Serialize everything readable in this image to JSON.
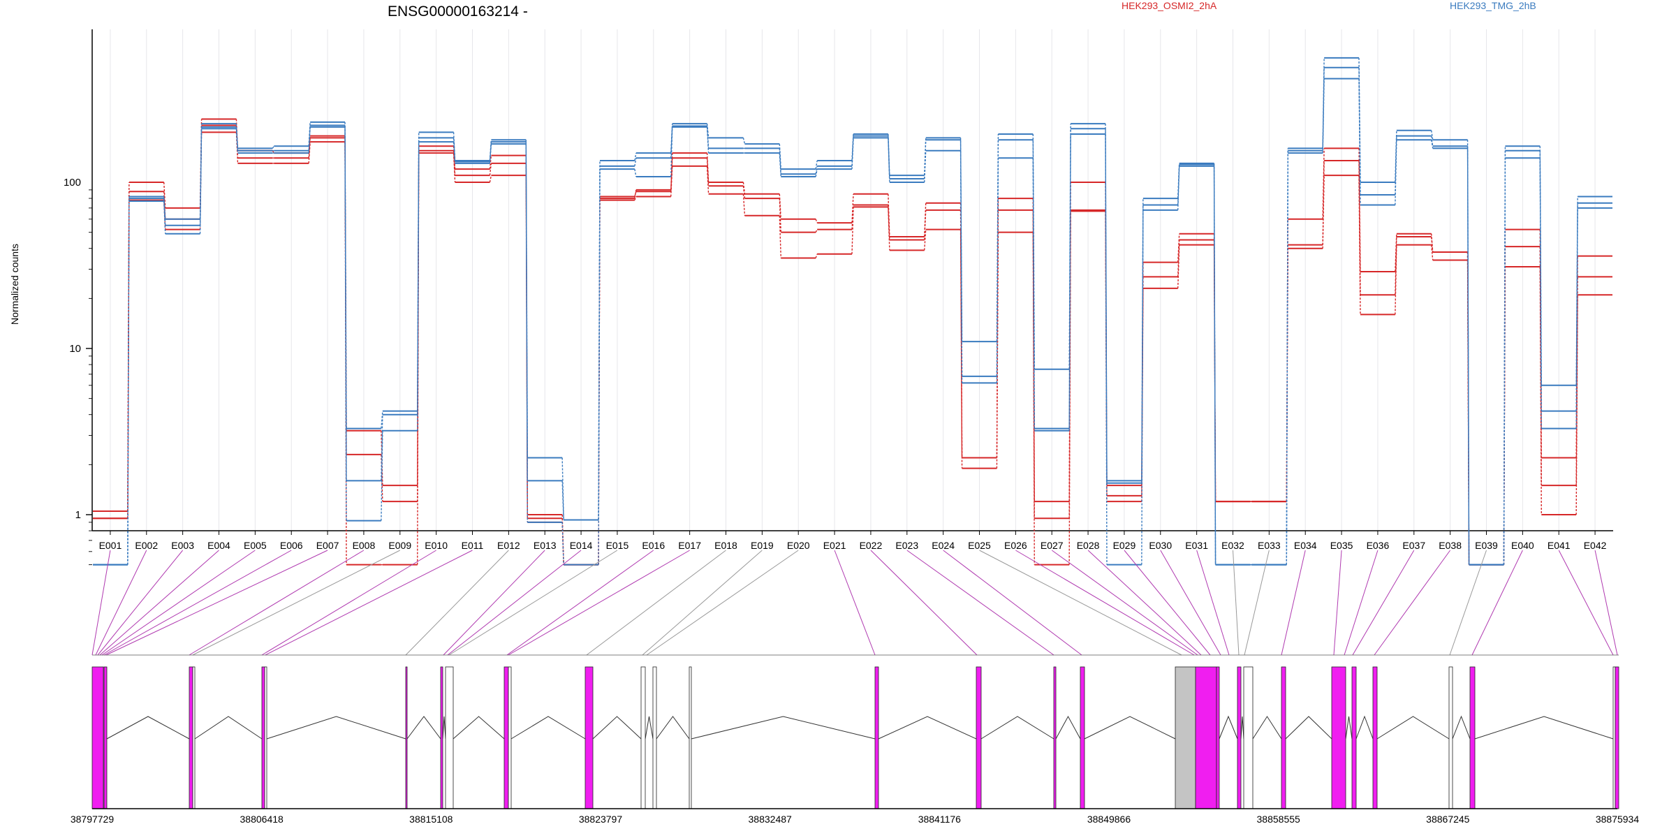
{
  "chart_data": {
    "type": "line",
    "title": "ENSG00000163214 -",
    "ylabel": "Normalized counts",
    "yscale": "log",
    "ylim": [
      0.48,
      800
    ],
    "y_ticks": [
      {
        "value": 1,
        "label": "1"
      },
      {
        "value": 10,
        "label": "10"
      },
      {
        "value": 100,
        "label": "100"
      }
    ],
    "legend": [
      {
        "label": "HEK293_OSMI2_2hA",
        "color": "#d62728"
      },
      {
        "label": "HEK293_TMG_2hB",
        "color": "#3a7bbf"
      }
    ],
    "legend_placement": "top",
    "categories": [
      "E001",
      "E002",
      "E003",
      "E004",
      "E005",
      "E006",
      "E007",
      "E008",
      "E009",
      "E010",
      "E011",
      "E012",
      "E013",
      "E014",
      "E015",
      "E016",
      "E017",
      "E018",
      "E019",
      "E020",
      "E021",
      "E022",
      "E023",
      "E024",
      "E025",
      "E026",
      "E027",
      "E028",
      "E029",
      "E030",
      "E031",
      "E032",
      "E033",
      "E034",
      "E035",
      "E036",
      "E037",
      "E038",
      "E039",
      "E040",
      "E041",
      "E042"
    ],
    "series": [
      {
        "group": "red",
        "color": "#d62728",
        "values": [
          1.05,
          100,
          70,
          240,
          155,
          150,
          190,
          3.2,
          1.5,
          165,
          120,
          145,
          1.0,
          0.5,
          80,
          90,
          150,
          100,
          85,
          60,
          57,
          85,
          47,
          75,
          2.2,
          80,
          1.2,
          100,
          1.5,
          33,
          49,
          1.2,
          1.2,
          60,
          160,
          29,
          49,
          38,
          0.5,
          52,
          2.2,
          36
        ]
      },
      {
        "group": "red",
        "color": "#d62728",
        "values": [
          0.95,
          88,
          60,
          220,
          140,
          140,
          185,
          2.3,
          1.2,
          155,
          110,
          130,
          0.95,
          0.5,
          82,
          88,
          140,
          95,
          80,
          50,
          52,
          73,
          45,
          68,
          2.2,
          68,
          0.95,
          68,
          1.3,
          27,
          45,
          1.2,
          1.2,
          42,
          135,
          21,
          47,
          38,
          0.5,
          41,
          1.5,
          27
        ]
      },
      {
        "group": "red",
        "color": "#d62728",
        "values": [
          0.95,
          78,
          52,
          200,
          130,
          130,
          175,
          0.5,
          0.5,
          150,
          100,
          110,
          0.9,
          0.5,
          78,
          82,
          125,
          85,
          63,
          35,
          37,
          71,
          39,
          52,
          1.9,
          50,
          0.5,
          67,
          1.2,
          23,
          42,
          1.2,
          1.2,
          40,
          110,
          16,
          42,
          34,
          0.5,
          31,
          1.0,
          21
        ]
      },
      {
        "group": "blue",
        "color": "#3a7bbf",
        "values": [
          0.5,
          82,
          60,
          225,
          160,
          165,
          230,
          3.3,
          4.2,
          200,
          135,
          180,
          2.2,
          0.93,
          135,
          150,
          225,
          185,
          170,
          120,
          135,
          195,
          110,
          185,
          11,
          195,
          7.5,
          225,
          1.6,
          80,
          130,
          0.5,
          0.5,
          160,
          560,
          100,
          205,
          180,
          0.5,
          165,
          6,
          82
        ]
      },
      {
        "group": "blue",
        "color": "#3a7bbf",
        "values": [
          0.5,
          80,
          55,
          215,
          155,
          155,
          220,
          1.6,
          4.0,
          185,
          133,
          175,
          1.6,
          0.93,
          125,
          140,
          218,
          160,
          160,
          112,
          125,
          190,
          105,
          180,
          6.8,
          180,
          3.3,
          210,
          1.55,
          73,
          128,
          0.5,
          0.5,
          155,
          490,
          84,
          190,
          165,
          0.5,
          155,
          4.2,
          75
        ]
      },
      {
        "group": "blue",
        "color": "#3a7bbf",
        "values": [
          0.5,
          77,
          49,
          210,
          150,
          150,
          215,
          0.92,
          3.2,
          175,
          130,
          170,
          0.9,
          0.5,
          120,
          108,
          215,
          150,
          150,
          108,
          120,
          185,
          100,
          155,
          6.2,
          140,
          3.2,
          195,
          0.5,
          68,
          125,
          0.5,
          0.5,
          150,
          420,
          73,
          180,
          160,
          0.5,
          140,
          3.3,
          70
        ]
      }
    ],
    "genomic_axis": {
      "ticks": [
        "38797729",
        "38806418",
        "38815108",
        "38823797",
        "38832487",
        "38841176",
        "38849866",
        "38858555",
        "38867245",
        "38875934"
      ],
      "range": [
        38797729,
        38875934
      ]
    }
  }
}
